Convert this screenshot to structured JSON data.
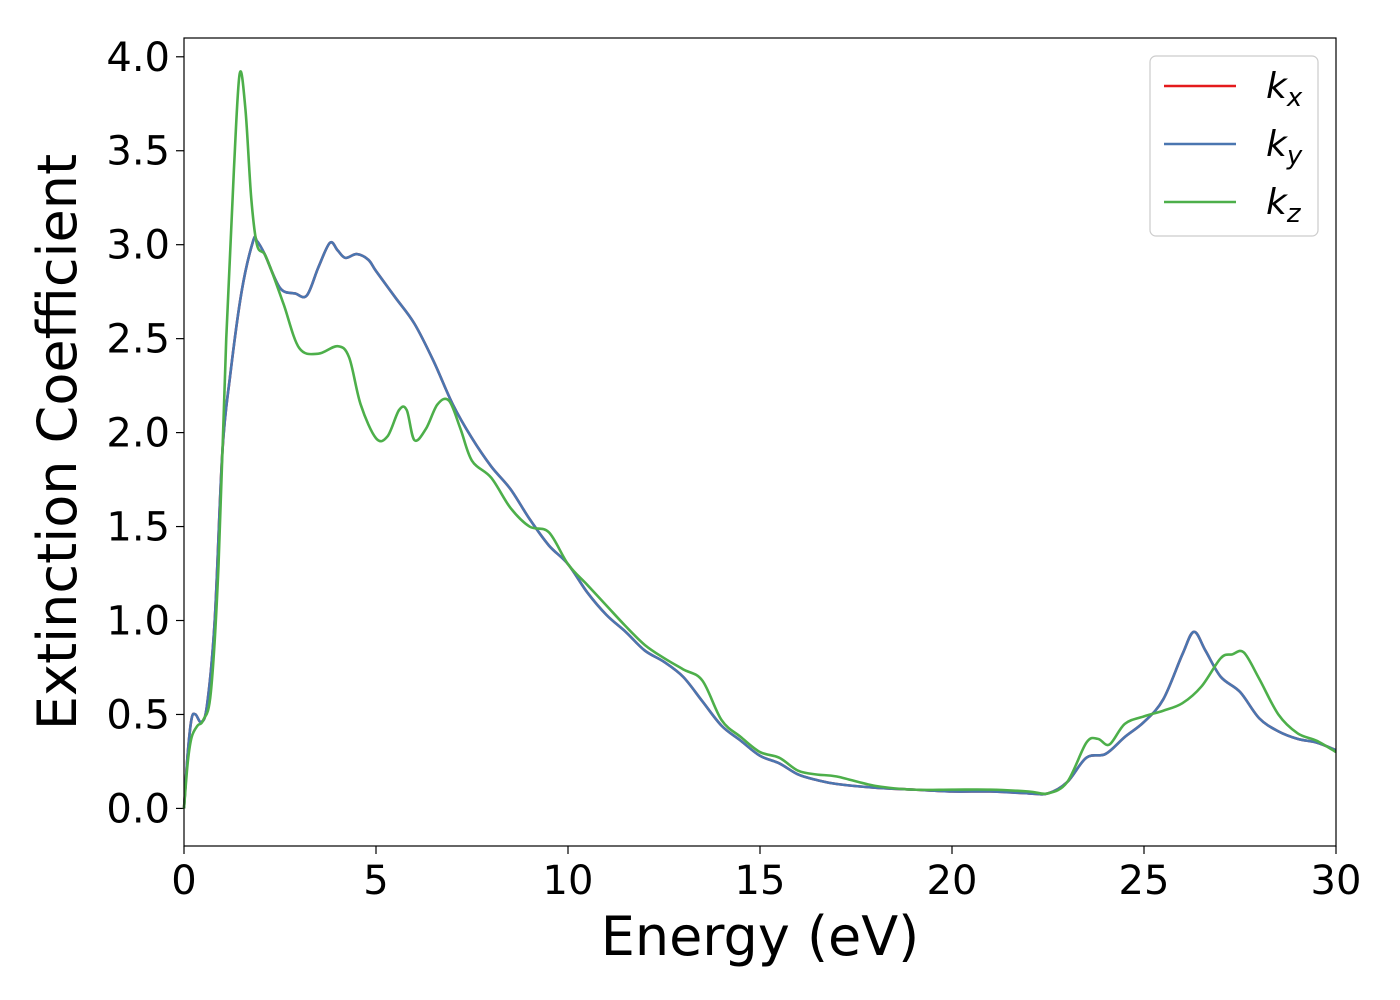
{
  "chart_data": {
    "type": "line",
    "title": "",
    "xlabel": "Energy (eV)",
    "ylabel": "Extinction Coefficient",
    "xlim": [
      0,
      30
    ],
    "ylim": [
      -0.2,
      4.1
    ],
    "xticks": [
      "0",
      "5",
      "10",
      "15",
      "20",
      "25",
      "30"
    ],
    "yticks": [
      "0.0",
      "0.5",
      "1.0",
      "1.5",
      "2.0",
      "2.5",
      "3.0",
      "3.5",
      "4.0"
    ],
    "grid": false,
    "legend_position": "top-right",
    "series": [
      {
        "name": "k_x",
        "legend_main": "k",
        "legend_sub": "x",
        "color": "#e41a1c",
        "x": [
          0,
          0.1,
          0.2,
          0.3,
          0.45,
          0.6,
          0.8,
          1.0,
          1.2,
          1.5,
          1.8,
          1.9,
          2.1,
          2.5,
          2.9,
          3.2,
          3.5,
          3.8,
          4.0,
          4.2,
          4.5,
          4.8,
          5.0,
          5.5,
          6.0,
          6.5,
          7.0,
          7.5,
          8.0,
          8.5,
          9.0,
          9.5,
          10.0,
          10.5,
          11.0,
          11.5,
          12.0,
          12.5,
          13.0,
          13.5,
          14.0,
          14.5,
          15.0,
          15.5,
          16.0,
          16.5,
          17.0,
          18.0,
          19.0,
          20.0,
          21.0,
          22.0,
          22.5,
          23.0,
          23.5,
          24.0,
          24.5,
          25.0,
          25.5,
          26.0,
          26.3,
          26.6,
          27.0,
          27.5,
          28.0,
          28.5,
          29.0,
          29.5,
          30.0
        ],
        "y": [
          0.0,
          0.3,
          0.48,
          0.5,
          0.46,
          0.55,
          1.0,
          1.9,
          2.3,
          2.75,
          3.02,
          3.02,
          2.95,
          2.77,
          2.74,
          2.73,
          2.88,
          3.01,
          2.97,
          2.93,
          2.95,
          2.92,
          2.86,
          2.72,
          2.58,
          2.38,
          2.15,
          1.97,
          1.82,
          1.7,
          1.54,
          1.4,
          1.3,
          1.15,
          1.03,
          0.94,
          0.84,
          0.78,
          0.7,
          0.57,
          0.44,
          0.36,
          0.28,
          0.24,
          0.18,
          0.15,
          0.13,
          0.11,
          0.1,
          0.09,
          0.09,
          0.08,
          0.08,
          0.14,
          0.27,
          0.29,
          0.38,
          0.46,
          0.58,
          0.82,
          0.94,
          0.84,
          0.7,
          0.62,
          0.48,
          0.41,
          0.37,
          0.35,
          0.31
        ]
      },
      {
        "name": "k_y",
        "legend_main": "k",
        "legend_sub": "y",
        "color": "#4a76b0",
        "x": [
          0,
          0.1,
          0.2,
          0.3,
          0.45,
          0.6,
          0.8,
          1.0,
          1.2,
          1.5,
          1.8,
          1.9,
          2.1,
          2.5,
          2.9,
          3.2,
          3.5,
          3.8,
          4.0,
          4.2,
          4.5,
          4.8,
          5.0,
          5.5,
          6.0,
          6.5,
          7.0,
          7.5,
          8.0,
          8.5,
          9.0,
          9.5,
          10.0,
          10.5,
          11.0,
          11.5,
          12.0,
          12.5,
          13.0,
          13.5,
          14.0,
          14.5,
          15.0,
          15.5,
          16.0,
          16.5,
          17.0,
          18.0,
          19.0,
          20.0,
          21.0,
          22.0,
          22.5,
          23.0,
          23.5,
          24.0,
          24.5,
          25.0,
          25.5,
          26.0,
          26.3,
          26.6,
          27.0,
          27.5,
          28.0,
          28.5,
          29.0,
          29.5,
          30.0
        ],
        "y": [
          0.0,
          0.3,
          0.48,
          0.5,
          0.46,
          0.55,
          1.0,
          1.9,
          2.3,
          2.75,
          3.02,
          3.02,
          2.95,
          2.77,
          2.74,
          2.73,
          2.88,
          3.01,
          2.97,
          2.93,
          2.95,
          2.92,
          2.86,
          2.72,
          2.58,
          2.38,
          2.15,
          1.97,
          1.82,
          1.7,
          1.54,
          1.4,
          1.3,
          1.15,
          1.03,
          0.94,
          0.84,
          0.78,
          0.7,
          0.57,
          0.44,
          0.36,
          0.28,
          0.24,
          0.18,
          0.15,
          0.13,
          0.11,
          0.1,
          0.09,
          0.09,
          0.08,
          0.08,
          0.14,
          0.27,
          0.29,
          0.38,
          0.46,
          0.58,
          0.82,
          0.94,
          0.84,
          0.7,
          0.62,
          0.48,
          0.41,
          0.37,
          0.35,
          0.31
        ]
      },
      {
        "name": "k_z",
        "legend_main": "k",
        "legend_sub": "z",
        "color": "#4daf4a",
        "x": [
          0,
          0.1,
          0.2,
          0.35,
          0.5,
          0.7,
          0.9,
          1.1,
          1.3,
          1.45,
          1.6,
          1.75,
          1.9,
          2.1,
          2.3,
          2.6,
          3.0,
          3.5,
          4.0,
          4.3,
          4.6,
          5.0,
          5.3,
          5.6,
          5.8,
          6.0,
          6.3,
          6.6,
          6.9,
          7.2,
          7.5,
          8.0,
          8.5,
          9.0,
          9.5,
          10.0,
          10.5,
          11.0,
          11.5,
          12.0,
          12.5,
          13.0,
          13.5,
          14.0,
          14.5,
          15.0,
          15.5,
          16.0,
          16.5,
          17.0,
          18.0,
          19.0,
          20.0,
          21.0,
          22.0,
          22.5,
          23.0,
          23.5,
          23.8,
          24.1,
          24.5,
          25.0,
          25.5,
          26.0,
          26.5,
          27.0,
          27.3,
          27.6,
          28.0,
          28.5,
          29.0,
          29.5,
          30.0
        ],
        "y": [
          0.0,
          0.25,
          0.38,
          0.44,
          0.47,
          0.62,
          1.3,
          2.5,
          3.4,
          3.91,
          3.72,
          3.25,
          3.0,
          2.95,
          2.85,
          2.68,
          2.45,
          2.42,
          2.46,
          2.4,
          2.15,
          1.97,
          1.98,
          2.12,
          2.12,
          1.96,
          2.02,
          2.15,
          2.17,
          2.02,
          1.85,
          1.76,
          1.6,
          1.5,
          1.47,
          1.3,
          1.19,
          1.08,
          0.97,
          0.87,
          0.8,
          0.74,
          0.68,
          0.47,
          0.38,
          0.3,
          0.27,
          0.2,
          0.18,
          0.17,
          0.12,
          0.1,
          0.1,
          0.1,
          0.09,
          0.08,
          0.14,
          0.35,
          0.37,
          0.34,
          0.45,
          0.49,
          0.52,
          0.56,
          0.65,
          0.8,
          0.82,
          0.83,
          0.69,
          0.5,
          0.4,
          0.36,
          0.3
        ]
      }
    ]
  }
}
